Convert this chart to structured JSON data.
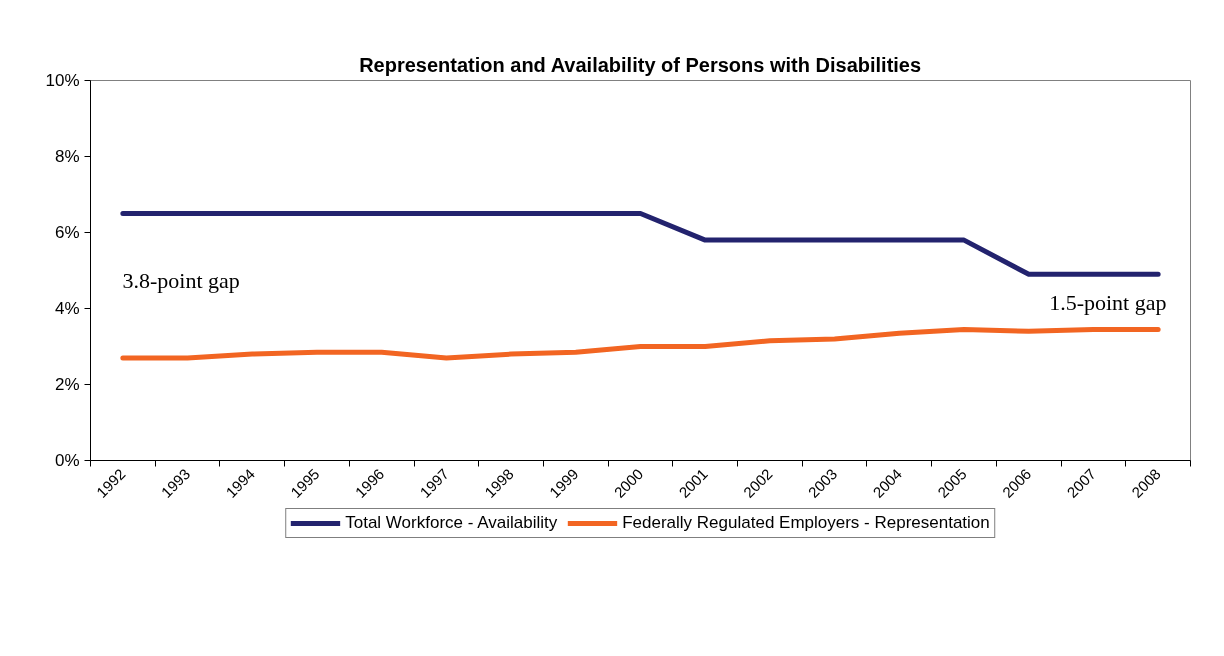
{
  "chart_data": {
    "type": "line",
    "title": "Representation and Availability of Persons with Disabilities",
    "categories": [
      "1992",
      "1993",
      "1994",
      "1995",
      "1996",
      "1997",
      "1998",
      "1999",
      "2000",
      "2001",
      "2002",
      "2003",
      "2004",
      "2005",
      "2006",
      "2007",
      "2008"
    ],
    "series": [
      {
        "name": "Total Workforce - Availability",
        "color": "#23236e",
        "values": [
          6.5,
          6.5,
          6.5,
          6.5,
          6.5,
          6.5,
          6.5,
          6.5,
          6.5,
          5.8,
          5.8,
          5.8,
          5.8,
          5.8,
          4.9,
          4.9,
          4.9
        ]
      },
      {
        "name": "Federally Regulated Employers - Representation",
        "color": "#f26522",
        "values": [
          2.7,
          2.7,
          2.8,
          2.85,
          2.85,
          2.7,
          2.8,
          2.85,
          3.0,
          3.0,
          3.15,
          3.2,
          3.35,
          3.45,
          3.4,
          3.45,
          3.45
        ]
      }
    ],
    "ylim": [
      0,
      10
    ],
    "yticks": [
      {
        "value": 0,
        "label": "0%"
      },
      {
        "value": 2,
        "label": "2%"
      },
      {
        "value": 4,
        "label": "4%"
      },
      {
        "value": 6,
        "label": "6%"
      },
      {
        "value": 8,
        "label": "8%"
      },
      {
        "value": 10,
        "label": "10%"
      }
    ],
    "annotations": [
      "3.8-point gap",
      "1.5-point gap"
    ],
    "legend": "bottom",
    "grid": false,
    "marker": "none",
    "line_style": "solid"
  }
}
